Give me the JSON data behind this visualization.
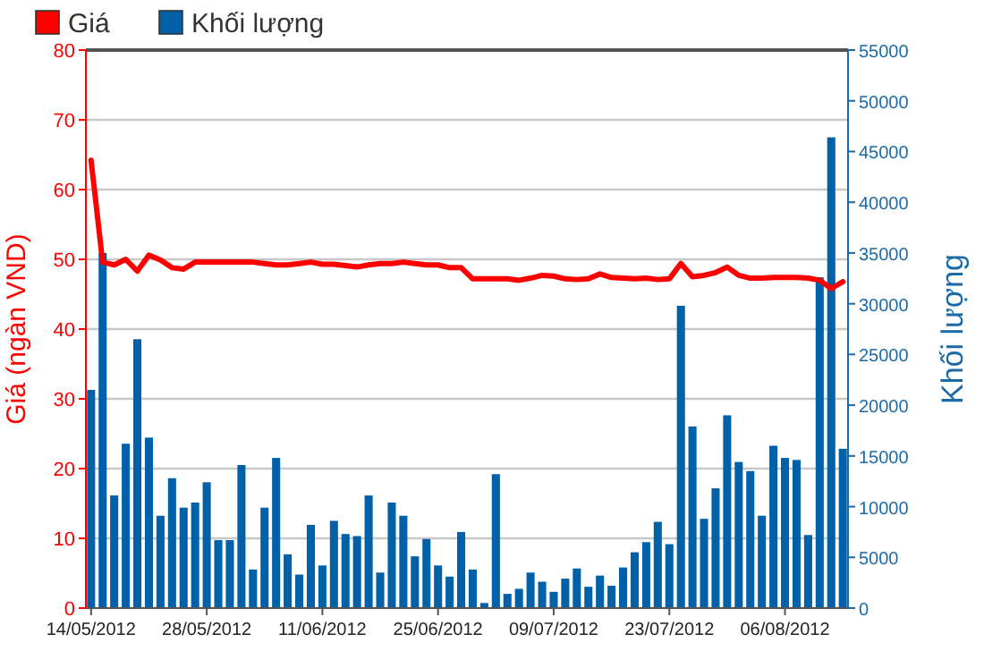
{
  "chart_data": {
    "type": "bar",
    "ylabel": "Giá (ngàn VND)",
    "y2label": "Khối lượng",
    "categories": [
      "14/05/2012",
      null,
      null,
      null,
      null,
      null,
      null,
      null,
      null,
      null,
      "28/05/2012",
      null,
      null,
      null,
      null,
      null,
      null,
      null,
      null,
      null,
      "11/06/2012",
      null,
      null,
      null,
      null,
      null,
      null,
      null,
      null,
      null,
      "25/06/2012",
      null,
      null,
      null,
      null,
      null,
      null,
      null,
      null,
      null,
      "09/07/2012",
      null,
      null,
      null,
      null,
      null,
      null,
      null,
      null,
      null,
      "23/07/2012",
      null,
      null,
      null,
      null,
      null,
      null,
      null,
      null,
      null,
      "06/08/2012",
      null,
      null,
      null,
      null,
      null
    ],
    "series": [
      {
        "name": "Giá",
        "type": "line",
        "color": "#ff0000",
        "values": [
          64.2,
          49.6,
          49.2,
          50.0,
          48.3,
          50.6,
          49.9,
          48.8,
          48.6,
          49.6,
          49.6,
          49.6,
          49.6,
          49.6,
          49.6,
          49.4,
          49.2,
          49.2,
          49.4,
          49.6,
          49.3,
          49.3,
          49.1,
          48.9,
          49.2,
          49.4,
          49.4,
          49.6,
          49.4,
          49.2,
          49.2,
          48.8,
          48.8,
          47.2,
          47.2,
          47.2,
          47.2,
          47.0,
          47.3,
          47.7,
          47.6,
          47.2,
          47.1,
          47.2,
          47.9,
          47.4,
          47.3,
          47.2,
          47.3,
          47.1,
          47.2,
          49.4,
          47.5,
          47.7,
          48.1,
          48.9,
          47.7,
          47.3,
          47.3,
          47.4,
          47.4,
          47.4,
          47.3,
          47.0,
          45.8,
          46.8
        ]
      },
      {
        "name": "Khối lượng",
        "axis": "y2",
        "color": "#0060a8",
        "values": [
          21500,
          35000,
          11100,
          16200,
          26500,
          16800,
          9100,
          12800,
          9900,
          10400,
          12400,
          6700,
          6700,
          14100,
          3800,
          9900,
          14800,
          5300,
          3300,
          8200,
          4200,
          8600,
          7300,
          7100,
          11100,
          3500,
          10400,
          9100,
          5100,
          6800,
          4200,
          3100,
          7500,
          3800,
          500,
          13200,
          1400,
          1900,
          3500,
          2600,
          1600,
          2900,
          3900,
          2100,
          3200,
          2200,
          4000,
          5500,
          6500,
          8500,
          6300,
          29800,
          17900,
          8800,
          11800,
          19000,
          14400,
          13500,
          9100,
          16000,
          14800,
          14600,
          7200,
          32600,
          46400,
          15700
        ]
      }
    ],
    "ylim": [
      0,
      80
    ],
    "yticks": [
      0,
      10,
      20,
      30,
      40,
      50,
      60,
      70,
      80
    ],
    "y2lim": [
      0,
      55000
    ],
    "y2ticks": [
      0,
      5000,
      10000,
      15000,
      20000,
      25000,
      30000,
      35000,
      40000,
      45000,
      50000,
      55000
    ],
    "grid": "y",
    "legend": "top left"
  }
}
